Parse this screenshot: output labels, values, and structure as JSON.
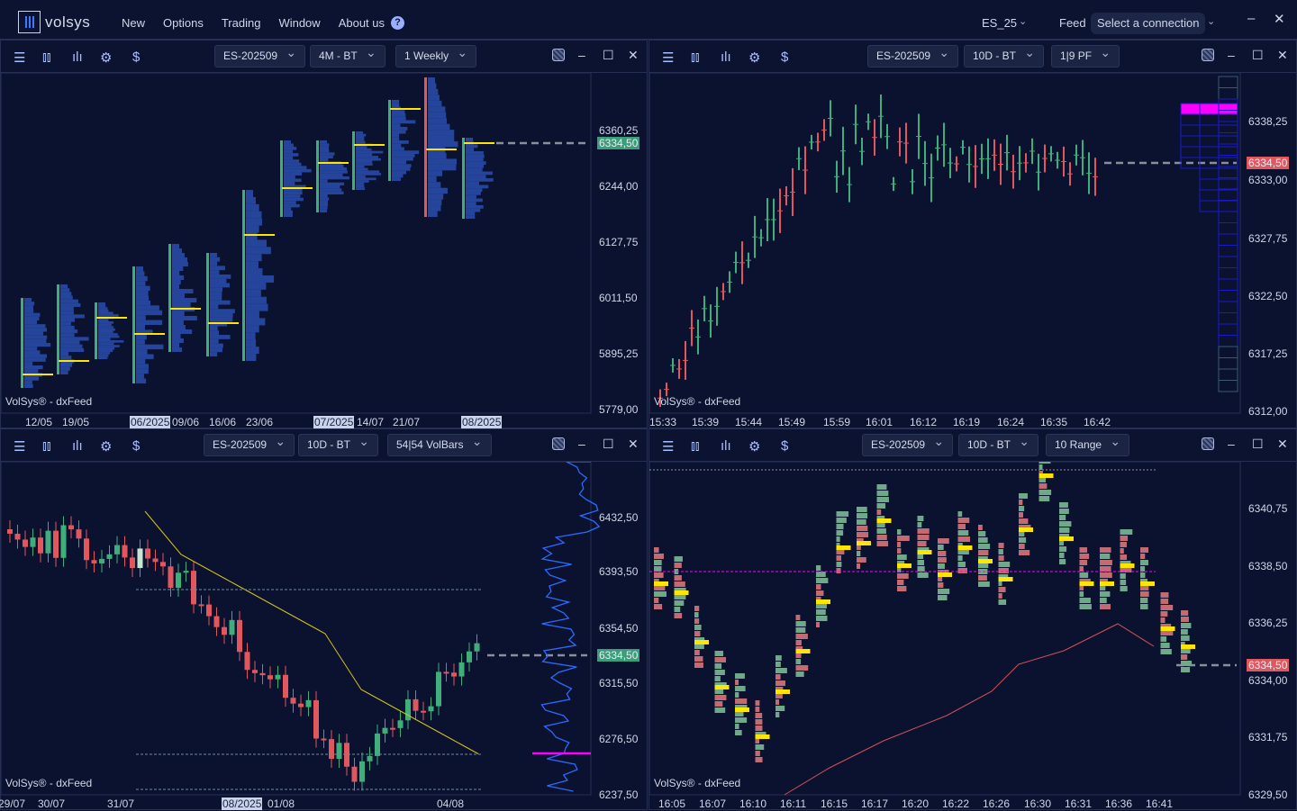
{
  "app": {
    "brand": "volsys",
    "menu": [
      "New",
      "Options",
      "Trading",
      "Window",
      "About us"
    ],
    "help_icon": "question-circle-icon",
    "symbol": "ES_25",
    "feed_label": "Feed",
    "connection": "Select a connection"
  },
  "colors": {
    "bg": "#0b1230",
    "up": "#3fae7a",
    "down": "#e0575e",
    "poc": "#ffe600",
    "last_up": "#3b9e78",
    "last_down": "#e0575e",
    "profile": "#2a4fb0",
    "accent": "#ff00ff"
  },
  "panes": [
    {
      "instrument": "ES-202509",
      "range": "4M - BT",
      "type": "1 Weekly",
      "watermark": "VolSys® - dxFeed",
      "prices": [
        "6360,25",
        "6244,00",
        "6127,75",
        "6011,50",
        "5895,25",
        "5779,00"
      ],
      "last": "6334,50",
      "times": [
        {
          "t": "12/05"
        },
        {
          "t": "19/05"
        },
        {
          "t": "06/2025",
          "hl": true
        },
        {
          "t": "09/06"
        },
        {
          "t": "16/06"
        },
        {
          "t": "23/06"
        },
        {
          "t": "07/2025",
          "hl": true
        },
        {
          "t": "14/07"
        },
        {
          "t": "21/07"
        },
        {
          "t": "08/2025",
          "hl": true
        }
      ]
    },
    {
      "instrument": "ES-202509",
      "range": "10D - BT",
      "type": "1|9 PF",
      "watermark": "VolSys® - dxFeed",
      "prices": [
        "6338,25",
        "6333,00",
        "6327,75",
        "6322,50",
        "6317,25",
        "6312,00"
      ],
      "last": "6334,50",
      "times": [
        {
          "t": "15:33"
        },
        {
          "t": "15:39"
        },
        {
          "t": "15:44"
        },
        {
          "t": "15:49"
        },
        {
          "t": "15:59"
        },
        {
          "t": "16:01"
        },
        {
          "t": "16:12"
        },
        {
          "t": "16:19"
        },
        {
          "t": "16:24"
        },
        {
          "t": "16:35"
        },
        {
          "t": "16:42"
        }
      ]
    },
    {
      "instrument": "ES-202509",
      "range": "10D - BT",
      "type": "54|54 VolBars",
      "watermark": "VolSys® - dxFeed",
      "prices": [
        "6432,50",
        "6393,50",
        "6354,50",
        "6315,50",
        "6276,50",
        "6237,50"
      ],
      "last": "6334,50",
      "times": [
        {
          "t": "29/07"
        },
        {
          "t": "30/07"
        },
        {
          "t": "31/07"
        },
        {
          "t": "08/2025",
          "hl": true
        },
        {
          "t": "01/08"
        },
        {
          "t": "04/08"
        }
      ]
    },
    {
      "instrument": "ES-202509",
      "range": "10D - BT",
      "type": "10 Range",
      "watermark": "VolSys® - dxFeed",
      "prices": [
        "6340,75",
        "6338,50",
        "6336,25",
        "6334,00",
        "6331,75",
        "6329,50"
      ],
      "last": "6334,50",
      "times": [
        {
          "t": "16:05"
        },
        {
          "t": "16:07"
        },
        {
          "t": "16:10"
        },
        {
          "t": "16:11"
        },
        {
          "t": "16:15"
        },
        {
          "t": "16:17"
        },
        {
          "t": "16:20"
        },
        {
          "t": "16:22"
        },
        {
          "t": "16:26"
        },
        {
          "t": "16:30"
        },
        {
          "t": "16:31"
        },
        {
          "t": "16:36"
        },
        {
          "t": "16:41"
        }
      ]
    }
  ]
}
